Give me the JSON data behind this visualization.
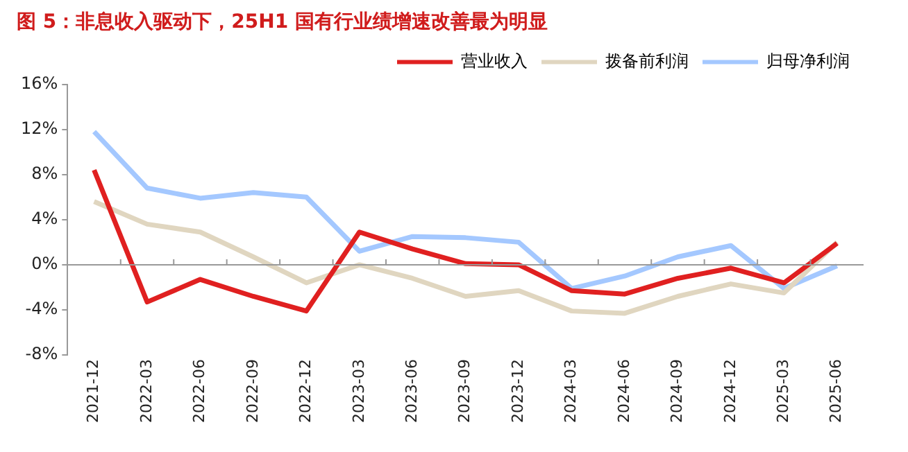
{
  "chart_data": {
    "type": "line",
    "title": "图 5：非息收入驱动下，25H1 国有行业绩增速改善最为明显",
    "categories": [
      "2021-12",
      "2022-03",
      "2022-06",
      "2022-09",
      "2022-12",
      "2023-03",
      "2023-06",
      "2023-09",
      "2023-12",
      "2024-03",
      "2024-06",
      "2024-09",
      "2024-12",
      "2025-03",
      "2025-06"
    ],
    "series": [
      {
        "name": "营业收入",
        "color": "#e02020",
        "values": [
          8.4,
          -3.3,
          -1.3,
          -2.8,
          -4.1,
          2.9,
          1.4,
          0.1,
          0.0,
          -2.3,
          -2.6,
          -1.2,
          -0.3,
          -1.6,
          1.9
        ]
      },
      {
        "name": "拨备前利润",
        "color": "#e0d6c0",
        "values": [
          5.6,
          3.6,
          2.9,
          0.7,
          -1.6,
          0.0,
          -1.2,
          -2.8,
          -2.3,
          -4.1,
          -4.3,
          -2.8,
          -1.7,
          -2.5,
          2.0
        ]
      },
      {
        "name": "归母净利润",
        "color": "#a4c8ff",
        "values": [
          11.8,
          6.8,
          5.9,
          6.4,
          6.0,
          1.2,
          2.5,
          2.4,
          2.0,
          -2.1,
          -1.0,
          0.7,
          1.7,
          -2.1,
          -0.1
        ]
      }
    ],
    "ylim": [
      -8,
      16
    ],
    "yticks": [
      {
        "value": -8,
        "label": "-8%"
      },
      {
        "value": -4,
        "label": "-4%"
      },
      {
        "value": 0,
        "label": "0%"
      },
      {
        "value": 4,
        "label": "4%"
      },
      {
        "value": 8,
        "label": "8%"
      },
      {
        "value": 12,
        "label": "12%"
      },
      {
        "value": 16,
        "label": "16%"
      }
    ],
    "ref_lines": [
      {
        "axis": "y",
        "value": 0,
        "color": "#999999"
      }
    ],
    "grid": false,
    "legend": "top right",
    "marker": "none",
    "line_style": "solid"
  }
}
